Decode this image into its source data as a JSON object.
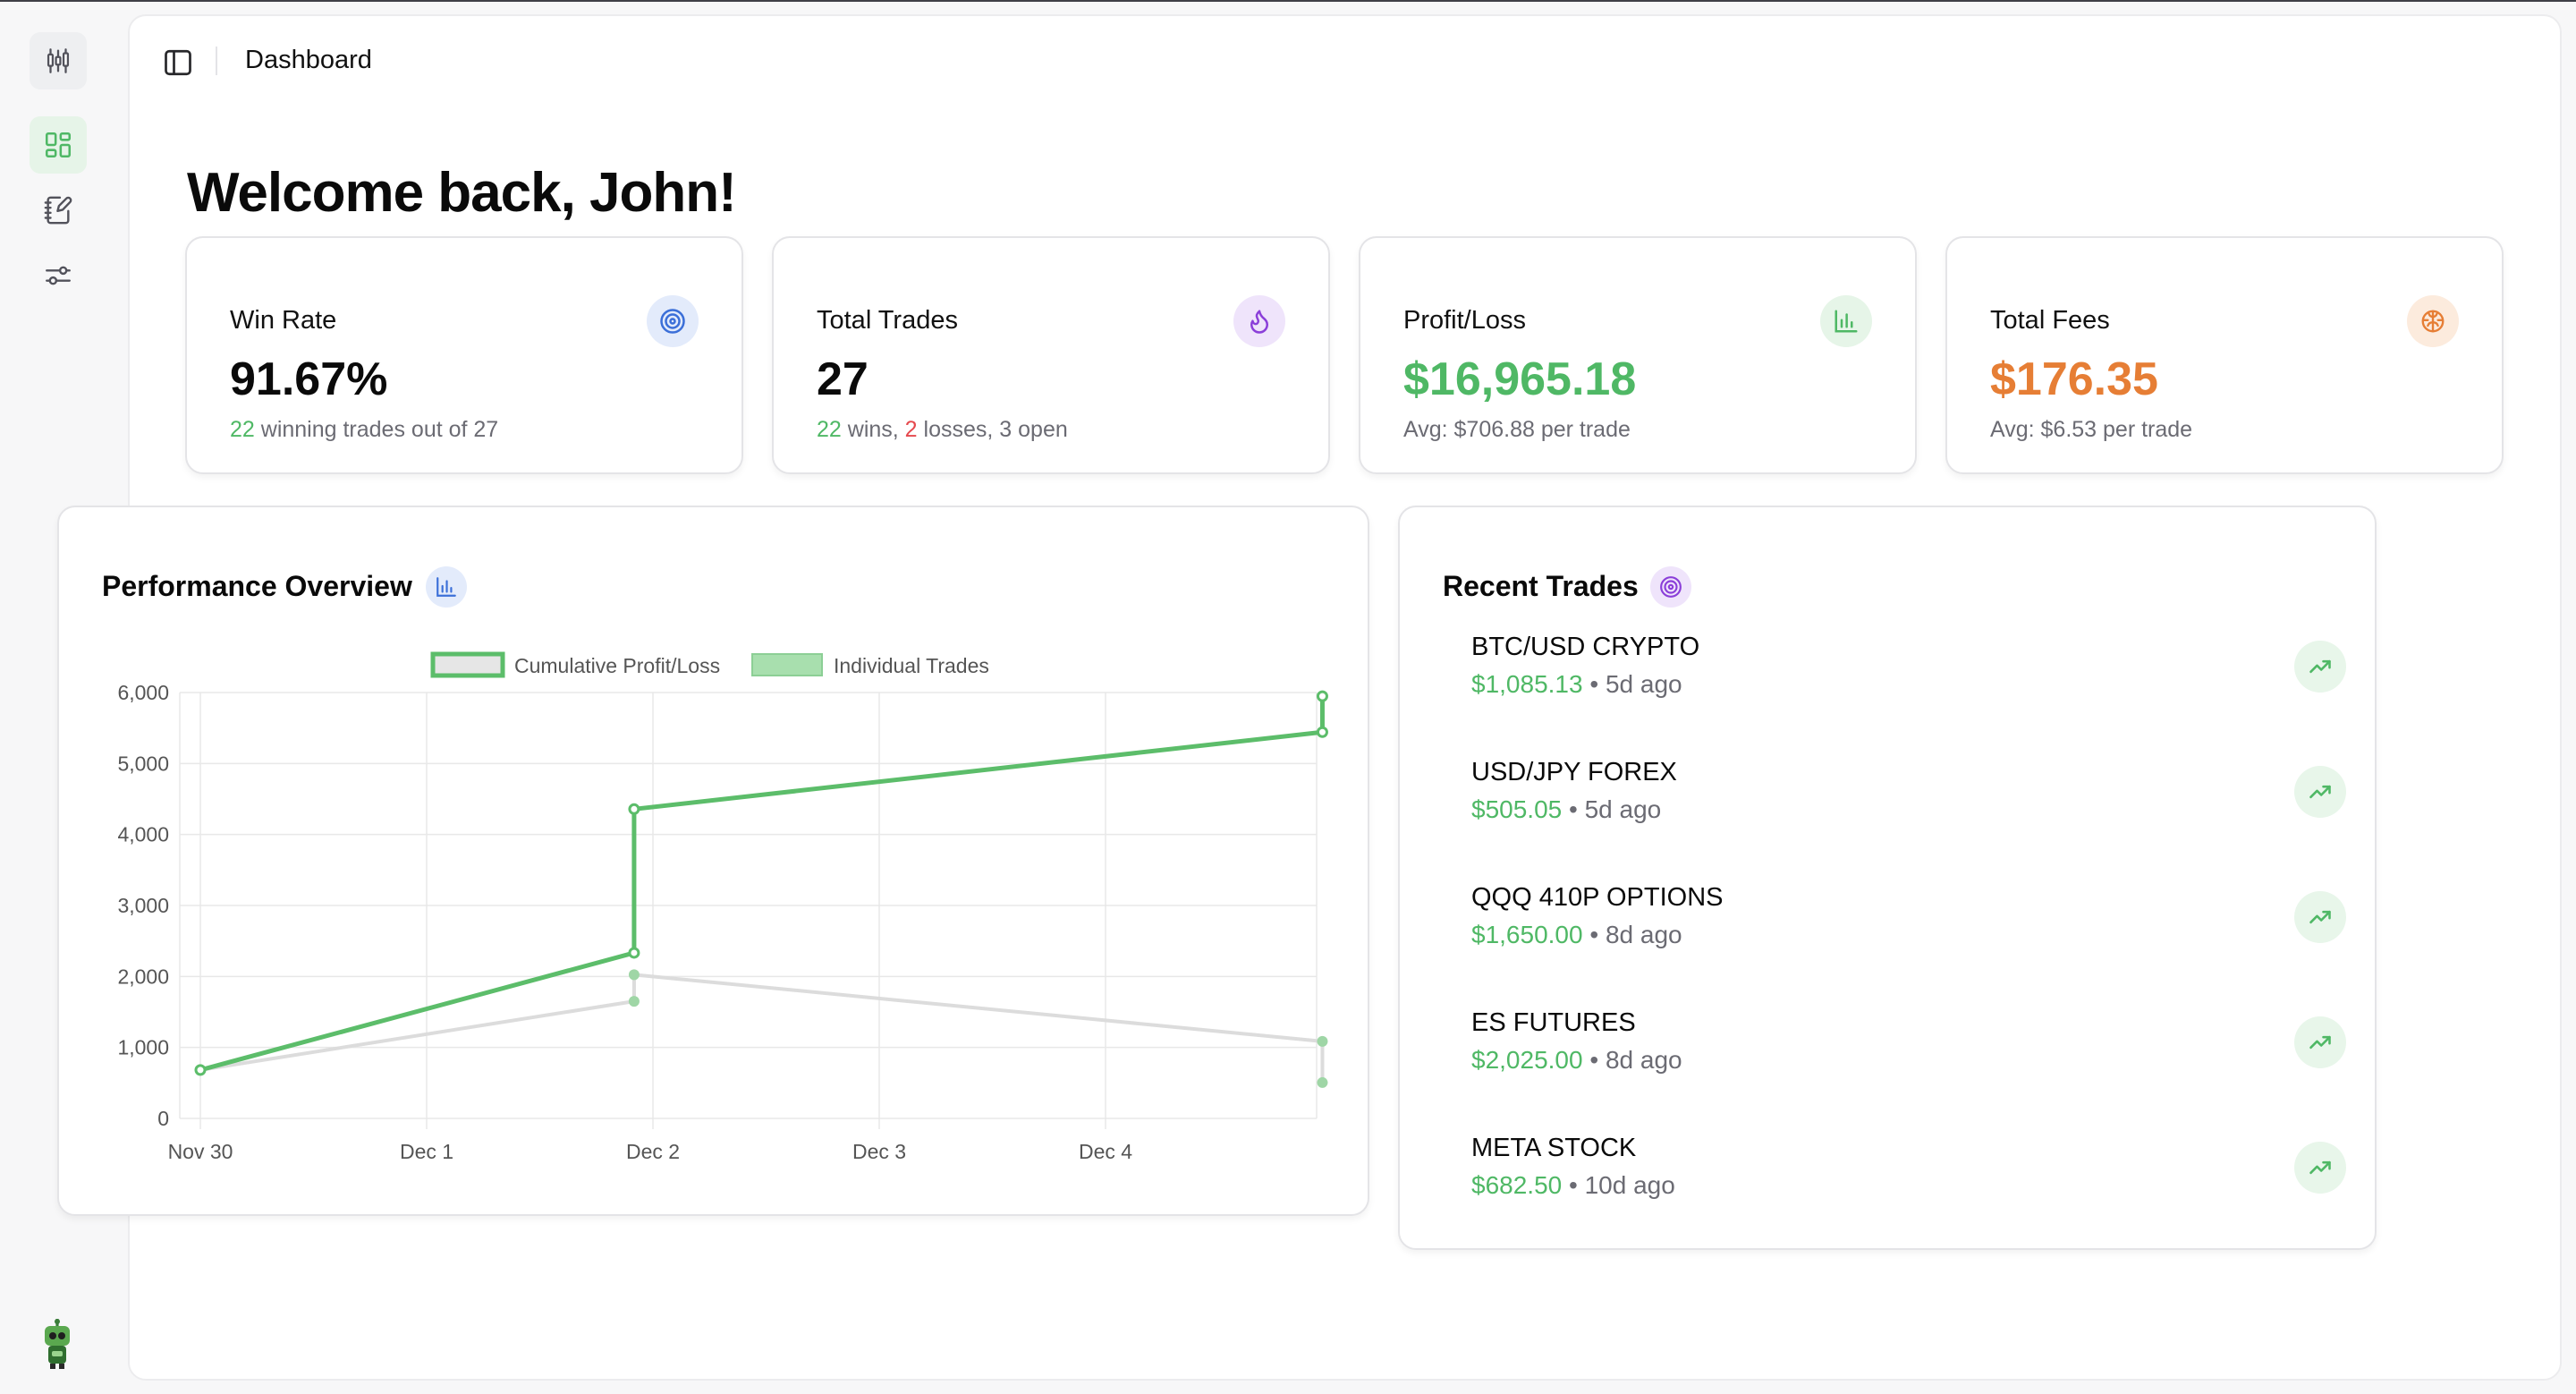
{
  "header": {
    "title": "Dashboard"
  },
  "welcome": "Welcome back, John!",
  "stats": {
    "win_rate": {
      "title": "Win Rate",
      "value": "91.67%",
      "sub_count": "22",
      "sub_text": " winning trades out of 27",
      "icon": "target-icon"
    },
    "total_trades": {
      "title": "Total Trades",
      "value": "27",
      "wins": "22",
      "wins_label": " wins, ",
      "losses": "2",
      "losses_label": " losses, ",
      "open": "3",
      "open_label": " open",
      "icon": "flame-icon"
    },
    "profit_loss": {
      "title": "Profit/Loss",
      "value": "$16,965.18",
      "sub": "Avg: $706.88 per trade",
      "icon": "bar-chart-icon"
    },
    "total_fees": {
      "title": "Total Fees",
      "value": "$176.35",
      "sub": "Avg: $6.53 per trade",
      "icon": "brain-icon"
    }
  },
  "performance": {
    "title": "Performance Overview",
    "icon": "bar-chart-icon"
  },
  "recent": {
    "title": "Recent Trades",
    "icon": "target-icon",
    "trades": [
      {
        "name": "BTC/USD CRYPTO",
        "amount": "$1,085.13",
        "age": "5d ago"
      },
      {
        "name": "USD/JPY FOREX",
        "amount": "$505.05",
        "age": "5d ago"
      },
      {
        "name": "QQQ 410P OPTIONS",
        "amount": "$1,650.00",
        "age": "8d ago"
      },
      {
        "name": "ES FUTURES",
        "amount": "$2,025.00",
        "age": "8d ago"
      },
      {
        "name": "META STOCK",
        "amount": "$682.50",
        "age": "10d ago"
      }
    ]
  },
  "colors": {
    "accent_green": "#4fb865",
    "loss_red": "#e5484d",
    "fee_orange": "#e67e35",
    "individual_gray": "#dcdcdc"
  },
  "chart_data": {
    "type": "line",
    "legend": [
      "Cumulative Profit/Loss",
      "Individual Trades"
    ],
    "legend_position": "top",
    "x_ticks": [
      "Nov 30",
      "Dec 1",
      "Dec 2",
      "Dec 3",
      "Dec 4"
    ],
    "y_ticks": [
      "0",
      "1,000",
      "2,000",
      "3,000",
      "4,000",
      "5,000",
      "6,000"
    ],
    "ylim": [
      0,
      6000
    ],
    "grid": true,
    "series": [
      {
        "name": "Cumulative Profit/Loss",
        "color": "#5cbd6a",
        "points": [
          {
            "x": "2023-11-30",
            "y": 682.5
          },
          {
            "x": "2023-12-01T22:00",
            "y": 2332.5
          },
          {
            "x": "2023-12-01T22:00",
            "y": 4357.5
          },
          {
            "x": "2023-12-04T23:00",
            "y": 5442.6
          },
          {
            "x": "2023-12-04T23:00",
            "y": 5947.7
          }
        ]
      },
      {
        "name": "Individual Trades",
        "color": "#dcdcdc",
        "points": [
          {
            "x": "2023-11-30",
            "y": 682.5
          },
          {
            "x": "2023-12-01T22:00",
            "y": 1650
          },
          {
            "x": "2023-12-01T22:00",
            "y": 2025
          },
          {
            "x": "2023-12-04T23:00",
            "y": 1085.13
          },
          {
            "x": "2023-12-04T23:00",
            "y": 505.05
          }
        ]
      }
    ]
  }
}
